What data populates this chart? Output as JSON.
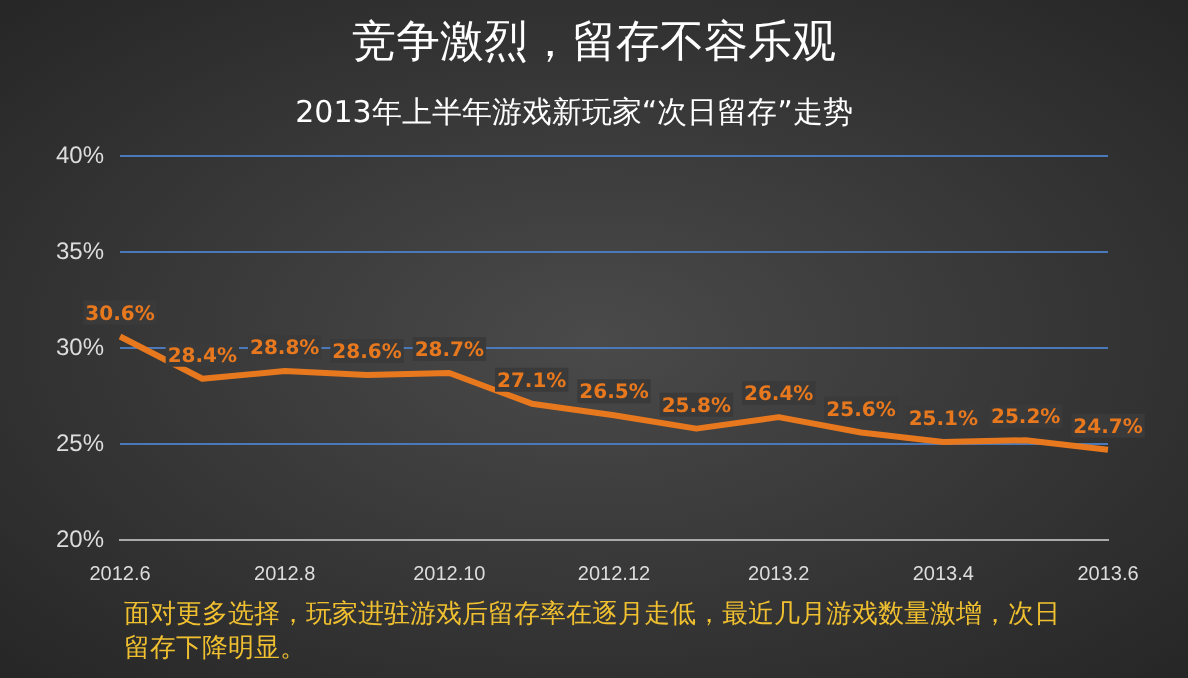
{
  "chart_data": {
    "type": "line",
    "title": "2013年上半年游戏新玩家“次日留存”走势",
    "categories": [
      "2012.6",
      null,
      "2012.8",
      null,
      "2012.10",
      null,
      "2012.12",
      null,
      "2013.2",
      null,
      "2013.4",
      null,
      "2013.6"
    ],
    "series": [
      {
        "color": "#e8781e",
        "values": [
          30.6,
          28.4,
          28.8,
          28.6,
          28.7,
          27.1,
          26.5,
          25.8,
          26.4,
          25.6,
          25.1,
          25.2,
          24.7
        ]
      }
    ],
    "value_labels": [
      "30.6%",
      "28.4%",
      "28.8%",
      "28.6%",
      "28.7%",
      "27.1%",
      "26.5%",
      "25.8%",
      "26.4%",
      "25.6%",
      "25.1%",
      "25.2%",
      "24.7%"
    ],
    "ylim": [
      20,
      40
    ],
    "yticks": [
      {
        "value": 20,
        "label": "20%"
      },
      {
        "value": 25,
        "label": "25%"
      },
      {
        "value": 30,
        "label": "30%"
      },
      {
        "value": 35,
        "label": "35%"
      },
      {
        "value": 40,
        "label": "40%"
      }
    ],
    "grid": "y",
    "marker": "none",
    "line_style": "solid",
    "legend": false,
    "annotations": [
      "竞争激烈，留存不容乐观",
      "面对更多选择，玩家进驻游戏后留存率在逐月走低，最近几月游戏数量激增，次日留存下降明显。"
    ]
  }
}
